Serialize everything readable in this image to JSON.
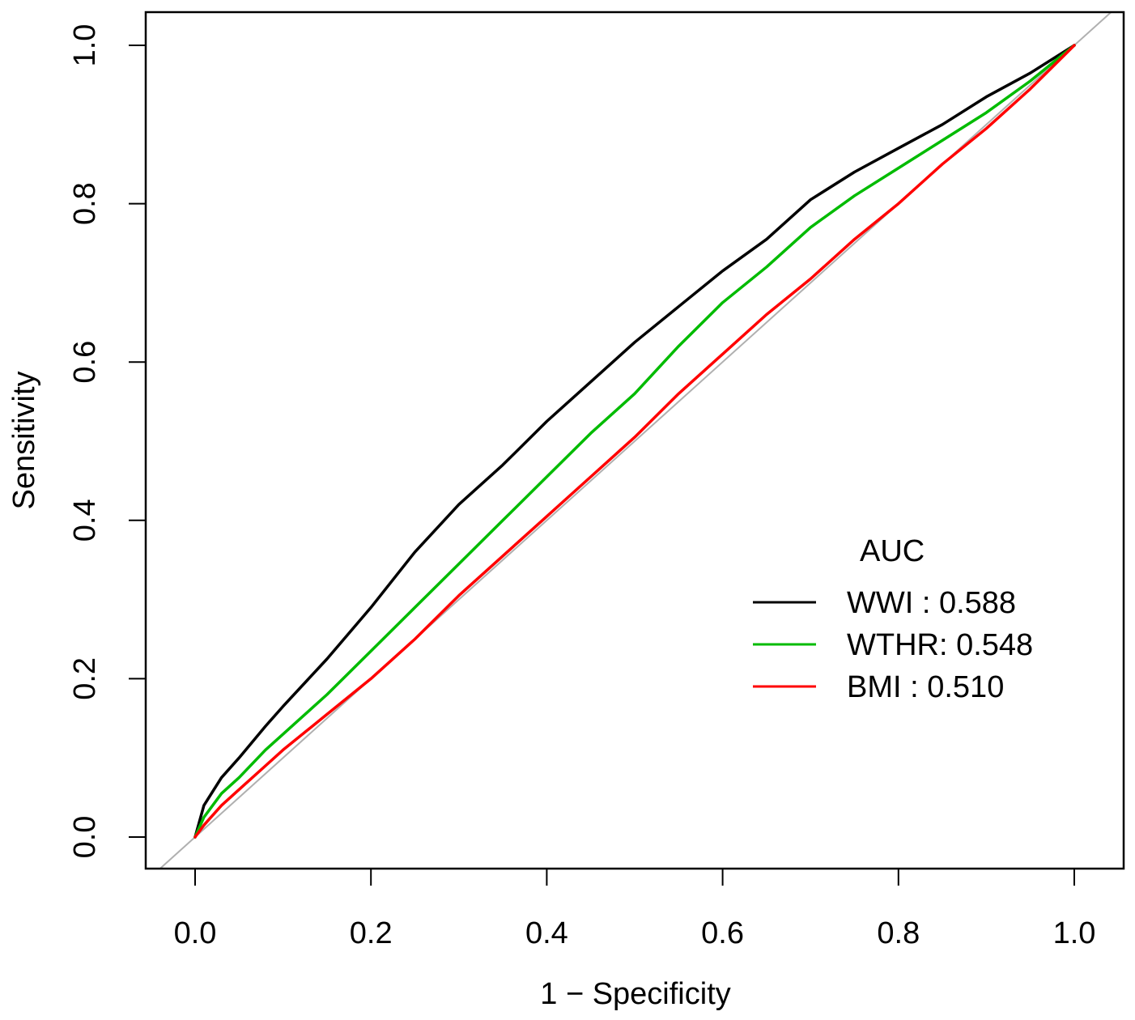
{
  "chart_data": {
    "type": "line",
    "xlabel": "1 − Specificity",
    "ylabel": "Sensitivity",
    "xlim": [
      0,
      1
    ],
    "ylim": [
      0,
      1
    ],
    "x_ticks": [
      "0.0",
      "0.2",
      "0.4",
      "0.6",
      "0.8",
      "1.0"
    ],
    "y_ticks": [
      "0.0",
      "0.2",
      "0.4",
      "0.6",
      "0.8",
      "1.0"
    ],
    "grid": false,
    "legend": {
      "title": "AUC",
      "placement": "bottom-right",
      "entries": [
        "WWI : 0.588",
        "WTHR: 0.548",
        "BMI : 0.510"
      ]
    },
    "reference_line": {
      "color": "#b0b0b0",
      "description": "diagonal"
    },
    "series": [
      {
        "name": "WWI : 0.588",
        "color": "#000000",
        "x": [
          0,
          0.01,
          0.03,
          0.05,
          0.08,
          0.1,
          0.15,
          0.2,
          0.25,
          0.3,
          0.35,
          0.4,
          0.45,
          0.5,
          0.55,
          0.6,
          0.65,
          0.7,
          0.75,
          0.8,
          0.85,
          0.9,
          0.95,
          1.0
        ],
        "values": [
          0,
          0.04,
          0.075,
          0.1,
          0.14,
          0.165,
          0.225,
          0.29,
          0.36,
          0.42,
          0.47,
          0.525,
          0.575,
          0.625,
          0.67,
          0.715,
          0.755,
          0.805,
          0.84,
          0.87,
          0.9,
          0.935,
          0.965,
          1.0
        ]
      },
      {
        "name": "WTHR: 0.548",
        "color": "#00bb00",
        "x": [
          0,
          0.01,
          0.03,
          0.05,
          0.08,
          0.1,
          0.15,
          0.2,
          0.25,
          0.3,
          0.35,
          0.4,
          0.45,
          0.5,
          0.55,
          0.6,
          0.65,
          0.7,
          0.75,
          0.8,
          0.85,
          0.9,
          0.95,
          1.0
        ],
        "values": [
          0,
          0.025,
          0.055,
          0.075,
          0.11,
          0.13,
          0.18,
          0.235,
          0.29,
          0.345,
          0.4,
          0.455,
          0.51,
          0.56,
          0.62,
          0.675,
          0.72,
          0.77,
          0.81,
          0.845,
          0.88,
          0.915,
          0.955,
          1.0
        ]
      },
      {
        "name": "BMI : 0.510",
        "color": "#ff0000",
        "x": [
          0,
          0.01,
          0.03,
          0.05,
          0.08,
          0.1,
          0.15,
          0.2,
          0.25,
          0.3,
          0.35,
          0.4,
          0.45,
          0.5,
          0.55,
          0.6,
          0.65,
          0.7,
          0.75,
          0.8,
          0.85,
          0.9,
          0.95,
          1.0
        ],
        "values": [
          0,
          0.015,
          0.04,
          0.06,
          0.09,
          0.11,
          0.155,
          0.2,
          0.25,
          0.305,
          0.355,
          0.405,
          0.455,
          0.505,
          0.56,
          0.61,
          0.66,
          0.705,
          0.755,
          0.8,
          0.85,
          0.895,
          0.945,
          1.0
        ]
      }
    ]
  }
}
